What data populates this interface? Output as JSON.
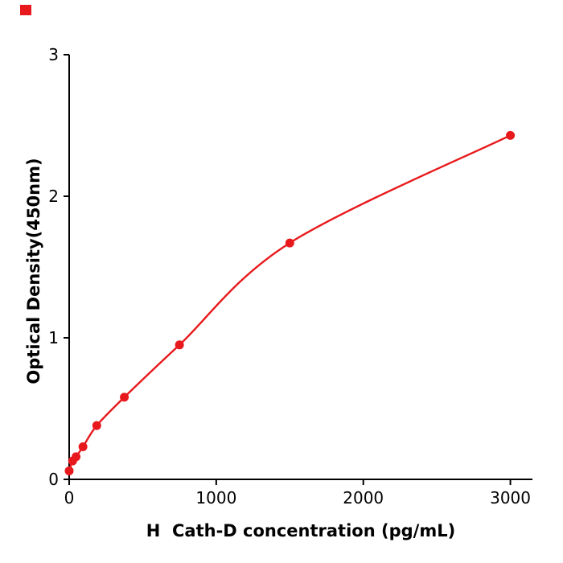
{
  "figure": {
    "background": "#ffffff",
    "corner_marker_color": "#e8191c"
  },
  "chart_data": {
    "type": "scatter",
    "title": "",
    "xlabel": "H  Cath-D concentration (pg/mL)",
    "ylabel": "Optical Density(450nm)",
    "x": [
      0,
      23.4,
      46.9,
      93.8,
      187.5,
      375,
      750,
      1500,
      3000
    ],
    "y": [
      0.06,
      0.13,
      0.16,
      0.23,
      0.38,
      0.58,
      0.95,
      1.67,
      2.43
    ],
    "xlim": [
      0,
      3150
    ],
    "ylim": [
      0,
      3
    ],
    "xticks": [
      0,
      1000,
      2000,
      3000
    ],
    "yticks": [
      0,
      1,
      2,
      3
    ],
    "grid": false,
    "legend": null,
    "curve_color": "#e8191c",
    "point_color": "#e8191c",
    "axis_color": "#000000"
  }
}
